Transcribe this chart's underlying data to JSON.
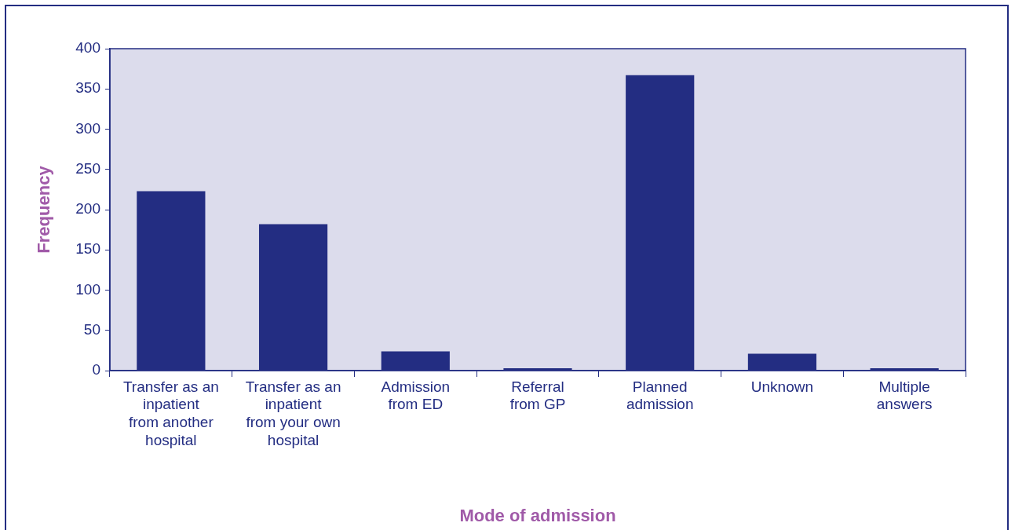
{
  "chart_data": {
    "type": "bar",
    "xlabel": "Mode of admission",
    "ylabel": "Frequency",
    "categories": [
      "Transfer as an\ninpatient\nfrom another\nhospital",
      "Transfer as an\ninpatient\nfrom your own\nhospital",
      "Admission\nfrom ED",
      "Referral\nfrom GP",
      "Planned\nadmission",
      "Unknown",
      "Multiple\nanswers"
    ],
    "values": [
      223,
      182,
      24,
      3,
      367,
      21,
      3
    ],
    "color": "#232d82",
    "ylim": [
      0,
      400
    ],
    "yticks": [
      0,
      50,
      100,
      150,
      200,
      250,
      300,
      350,
      400
    ],
    "grid": false,
    "legend": false
  }
}
